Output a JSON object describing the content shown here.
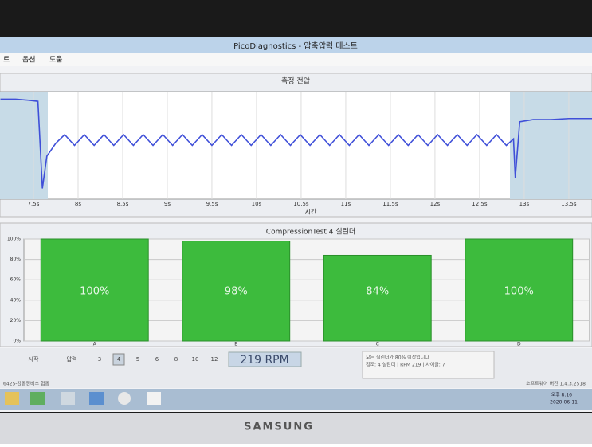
{
  "window": {
    "title": "PicoDiagnostics - 압축압력 테스트"
  },
  "menu": [
    "트",
    "옵션",
    "도움"
  ],
  "chart_data": [
    {
      "type": "line",
      "title": "측정 전압",
      "x_label": "시간",
      "xlim": [
        7.125,
        13.76
      ],
      "ylim": [
        0,
        10
      ],
      "xticks": [
        {
          "value": 7.5,
          "label": "7.5s"
        },
        {
          "value": 8,
          "label": "8s"
        },
        {
          "value": 8.5,
          "label": "8.5s"
        },
        {
          "value": 9,
          "label": "9s"
        },
        {
          "value": 9.5,
          "label": "9.5s"
        },
        {
          "value": 10,
          "label": "10s"
        },
        {
          "value": 10.5,
          "label": "10.5s"
        },
        {
          "value": 11,
          "label": "11s"
        },
        {
          "value": 11.5,
          "label": "11.5s"
        },
        {
          "value": 12,
          "label": "12s"
        },
        {
          "value": 12.5,
          "label": "12.5s"
        },
        {
          "value": 13,
          "label": "13s"
        },
        {
          "value": 13.5,
          "label": "13.5s"
        }
      ],
      "x": [
        7.13,
        7.3,
        7.45,
        7.55,
        7.6,
        7.65,
        7.75,
        7.85,
        7.96,
        8.07,
        8.18,
        8.29,
        8.4,
        8.51,
        8.62,
        8.73,
        8.84,
        8.95,
        9.06,
        9.17,
        9.28,
        9.39,
        9.5,
        9.61,
        9.72,
        9.83,
        9.94,
        10.05,
        10.16,
        10.27,
        10.38,
        10.49,
        10.6,
        10.71,
        10.82,
        10.93,
        11.04,
        11.15,
        11.26,
        11.37,
        11.48,
        11.59,
        11.7,
        11.81,
        11.92,
        12.03,
        12.14,
        12.25,
        12.36,
        12.47,
        12.58,
        12.69,
        12.8,
        12.88,
        12.9,
        12.95,
        13.1,
        13.3,
        13.5,
        13.76
      ],
      "series": [
        {
          "color": "#3f4fd8",
          "values": [
            9.3,
            9.3,
            9.2,
            9.1,
            1.0,
            4.0,
            5.2,
            6.0,
            5.0,
            6.0,
            5.0,
            6.0,
            5.0,
            6.0,
            5.0,
            6.0,
            5.0,
            6.0,
            5.0,
            6.0,
            5.0,
            6.0,
            5.0,
            6.0,
            5.0,
            6.0,
            5.0,
            6.0,
            5.0,
            6.0,
            5.0,
            6.0,
            5.0,
            6.0,
            5.0,
            6.0,
            5.0,
            6.0,
            5.0,
            6.0,
            5.0,
            6.0,
            5.0,
            6.0,
            5.0,
            6.0,
            5.0,
            6.0,
            5.0,
            6.0,
            5.0,
            6.0,
            5.0,
            5.6,
            2.0,
            7.2,
            7.4,
            7.4,
            7.5,
            7.5
          ]
        }
      ]
    },
    {
      "type": "bar",
      "title": "CompressionTest  4 실린더",
      "categories": [
        "A",
        "B",
        "C",
        "D"
      ],
      "values": [
        100,
        98,
        84,
        100
      ],
      "value_labels": [
        "100%",
        "98%",
        "84%",
        "100%"
      ],
      "color": "#3dbb3d",
      "ylim": [
        0,
        100
      ],
      "yticks": [
        {
          "value": 0,
          "label": "0%"
        },
        {
          "value": 20,
          "label": "20%"
        },
        {
          "value": 40,
          "label": "40%"
        },
        {
          "value": 60,
          "label": "60%"
        },
        {
          "value": 80,
          "label": "80%"
        },
        {
          "value": 100,
          "label": "100%"
        }
      ],
      "grid": true
    }
  ],
  "controls": {
    "start": "시작",
    "pressure": "압력",
    "cylinders": [
      "3",
      "4",
      "5",
      "6",
      "8",
      "10",
      "12"
    ],
    "rpm": "219 RPM",
    "info": [
      "모든 실린더가 80% 이상입니다",
      "참조: 4 실린더 | RPM 219 | 사이클: 7"
    ],
    "version": "소프트웨어 버전 1.4.3.2518"
  },
  "status": {
    "left": "6425-강동정비소 협동",
    "time": "오후 8:16",
    "date": "2020-06-11"
  },
  "brand": "SAMSUNG"
}
